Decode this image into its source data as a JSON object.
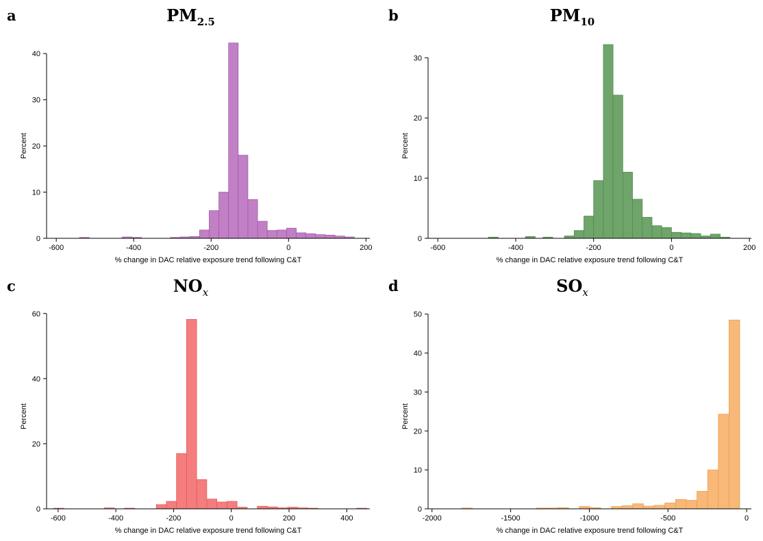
{
  "chart_data": [
    {
      "type": "bar",
      "panel_letter": "a",
      "title_main": "PM",
      "title_sub": "2.5",
      "title_sub_italic": false,
      "xlabel": "% change in DAC relative exposure trend following C&T",
      "ylabel": "Percent",
      "color": "#c17fc5",
      "stroke": "#9b59a0",
      "xlim": [
        -625,
        210
      ],
      "ylim": [
        0,
        43
      ],
      "xticks": [
        -600,
        -400,
        -200,
        0,
        200
      ],
      "yticks": [
        0,
        10,
        20,
        30,
        40
      ],
      "bin_width": 25,
      "bins_start": [
        -540,
        -430,
        -405,
        -305,
        -280,
        -255,
        -230,
        -205,
        -180,
        -155,
        -130,
        -105,
        -80,
        -55,
        -30,
        -5,
        20,
        45,
        70,
        95,
        120,
        145
      ],
      "values": [
        0.2,
        0.3,
        0.2,
        0.2,
        0.3,
        0.4,
        1.8,
        6.0,
        10.0,
        42.3,
        18.0,
        8.4,
        3.7,
        1.7,
        1.8,
        2.2,
        1.2,
        1.0,
        0.8,
        0.7,
        0.5,
        0.3
      ]
    },
    {
      "type": "bar",
      "panel_letter": "b",
      "title_main": "PM",
      "title_sub": "10",
      "title_sub_italic": false,
      "xlabel": "% change in DAC relative exposure trend following C&T",
      "ylabel": "Percent",
      "color": "#6fa46a",
      "stroke": "#4e8a4c",
      "xlim": [
        -625,
        205
      ],
      "ylim": [
        0,
        33
      ],
      "xticks": [
        -600,
        -400,
        -200,
        0,
        200
      ],
      "yticks": [
        0,
        10,
        20,
        30
      ],
      "bin_width": 25,
      "bins_start": [
        -470,
        -375,
        -330,
        -275,
        -250,
        -225,
        -200,
        -175,
        -150,
        -125,
        -100,
        -75,
        -50,
        -25,
        0,
        25,
        50,
        75,
        100,
        125
      ],
      "values": [
        0.2,
        0.3,
        0.2,
        0.4,
        1.3,
        3.7,
        9.6,
        32.2,
        23.8,
        11.0,
        6.5,
        3.5,
        2.1,
        1.8,
        1.0,
        0.9,
        0.8,
        0.4,
        0.7,
        0.2
      ]
    },
    {
      "type": "bar",
      "panel_letter": "c",
      "title_main": "NO",
      "title_sub": "x",
      "title_sub_italic": true,
      "xlabel": "% change in DAC relative exposure trend following C&T",
      "ylabel": "Percent",
      "color": "#f57d7d",
      "stroke": "#dc5a5a",
      "xlim": [
        -640,
        480
      ],
      "ylim": [
        0,
        61
      ],
      "xticks": [
        -600,
        -400,
        -200,
        0,
        200,
        400
      ],
      "yticks": [
        0,
        20,
        40,
        60
      ],
      "bin_width": 35,
      "bins_start": [
        -615,
        -440,
        -370,
        -260,
        -225,
        -190,
        -155,
        -120,
        -85,
        -50,
        -15,
        20,
        90,
        125,
        160,
        195,
        230,
        265,
        435
      ],
      "values": [
        0.2,
        0.3,
        0.2,
        1.3,
        2.3,
        17.0,
        58.2,
        9.0,
        3.0,
        2.1,
        2.3,
        0.5,
        0.8,
        0.6,
        0.3,
        0.5,
        0.3,
        0.2,
        0.2
      ]
    },
    {
      "type": "bar",
      "panel_letter": "d",
      "title_main": "SO",
      "title_sub": "x",
      "title_sub_italic": true,
      "xlabel": "% change in DAC relative exposure trend following C&T",
      "ylabel": "Percent",
      "color": "#f8b878",
      "stroke": "#e89a50",
      "xlim": [
        -2025,
        30
      ],
      "ylim": [
        0,
        51
      ],
      "xticks": [
        -2000,
        -1500,
        -1000,
        -500,
        0
      ],
      "yticks": [
        0,
        10,
        20,
        30,
        40,
        50
      ],
      "bin_width": 68,
      "bins_start": [
        -1812,
        -1336,
        -1268,
        -1200,
        -1064,
        -996,
        -860,
        -792,
        -724,
        -656,
        -588,
        -520,
        -452,
        -384,
        -316,
        -248,
        -180,
        -112
      ],
      "values": [
        0.2,
        0.2,
        0.2,
        0.3,
        0.6,
        0.3,
        0.6,
        0.8,
        1.3,
        0.7,
        0.9,
        1.5,
        2.4,
        2.2,
        4.5,
        10.0,
        24.3,
        48.5
      ]
    }
  ]
}
